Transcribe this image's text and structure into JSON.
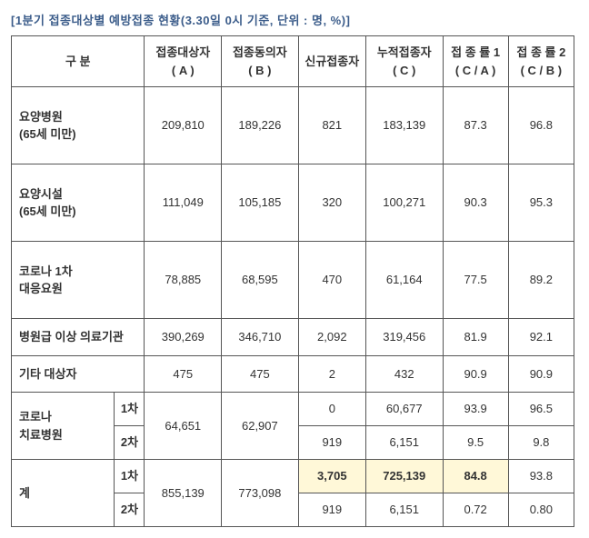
{
  "title": "[1분기 접종대상별 예방접종 현황(3.30일 0시 기준, 단위 : 명, %)]",
  "headers": {
    "category": "구   분",
    "a": "접종대상자\n( A )",
    "b": "접종동의자\n( B )",
    "new": "신규접종자",
    "c": "누적접종자\n( C )",
    "rate1": "접 종 률 1\n( C / A )",
    "rate2": "접 종 률 2\n( C / B )"
  },
  "rows": {
    "r0": {
      "label": "요양병원\n(65세 미만)",
      "a": "209,810",
      "b": "189,226",
      "new": "821",
      "c": "183,139",
      "r1": "87.3",
      "r2": "96.8"
    },
    "r1": {
      "label": "요양시설\n(65세 미만)",
      "a": "111,049",
      "b": "105,185",
      "new": "320",
      "c": "100,271",
      "r1": "90.3",
      "r2": "95.3"
    },
    "r2": {
      "label": "코로나 1차\n대응요원",
      "a": "78,885",
      "b": "68,595",
      "new": "470",
      "c": "61,164",
      "r1": "77.5",
      "r2": "89.2"
    },
    "r3": {
      "label": "병원급 이상 의료기관",
      "a": "390,269",
      "b": "346,710",
      "new": "2,092",
      "c": "319,456",
      "r1": "81.9",
      "r2": "92.1"
    },
    "r4": {
      "label": "기타 대상자",
      "a": "475",
      "b": "475",
      "new": "2",
      "c": "432",
      "r1": "90.9",
      "r2": "90.9"
    },
    "grp": {
      "label": "코로나\n치료병원",
      "sub1": "1차",
      "sub2": "2차",
      "a": "64,651",
      "b": "62,907",
      "d1": {
        "new": "0",
        "c": "60,677",
        "r1": "93.9",
        "r2": "96.5"
      },
      "d2": {
        "new": "919",
        "c": "6,151",
        "r1": "9.5",
        "r2": "9.8"
      }
    },
    "tot": {
      "label": "계",
      "sub1": "1차",
      "sub2": "2차",
      "a": "855,139",
      "b": "773,098",
      "d1": {
        "new": "3,705",
        "c": "725,139",
        "r1": "84.8",
        "r2": "93.8"
      },
      "d2": {
        "new": "919",
        "c": "6,151",
        "r1": "0.72",
        "r2": "0.80"
      }
    }
  }
}
